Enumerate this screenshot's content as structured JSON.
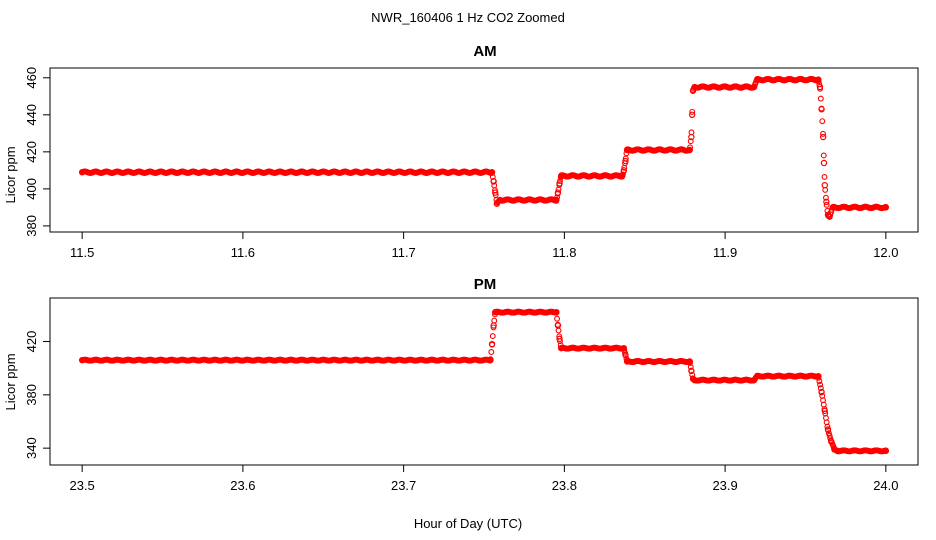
{
  "figure": {
    "title": "NWR_160406  1 Hz CO2 Zoomed",
    "xlabel": "Hour of Day (UTC)"
  },
  "chart_data": [
    {
      "type": "scatter",
      "title": "AM",
      "ylabel": "Licor ppm",
      "xlim": [
        11.5,
        12.0
      ],
      "ylim": [
        380,
        462
      ],
      "xticks": [
        "11.5",
        "11.6",
        "11.7",
        "11.8",
        "11.9",
        "12.0"
      ],
      "yticks": [
        "380",
        "400",
        "420",
        "440",
        "460"
      ],
      "grid": false,
      "marker_color": "#ff0000",
      "series": [
        {
          "x": [
            11.5,
            11.755,
            11.756,
            11.757,
            11.758,
            11.76,
            11.795,
            11.796,
            11.797,
            11.798,
            11.836,
            11.837,
            11.838,
            11.839,
            11.878,
            11.879,
            11.8795,
            11.88,
            11.881,
            11.918,
            11.92,
            11.958,
            11.959,
            11.96,
            11.961,
            11.9615,
            11.962,
            11.963,
            11.964,
            11.965,
            11.967,
            12.0
          ],
          "y": [
            409,
            409,
            404,
            398,
            392,
            394,
            394,
            398,
            403,
            407,
            407,
            410,
            415,
            421,
            421,
            428,
            440,
            453,
            455,
            455,
            459,
            459,
            455,
            443,
            428,
            414,
            402,
            393,
            386,
            385,
            390,
            390
          ]
        }
      ]
    },
    {
      "type": "scatter",
      "title": "PM",
      "ylabel": "Licor ppm",
      "xlim": [
        23.5,
        24.0
      ],
      "ylim": [
        332,
        448
      ],
      "xticks": [
        "23.5",
        "23.6",
        "23.7",
        "23.8",
        "23.9",
        "24.0"
      ],
      "yticks": [
        "340",
        "380",
        "420"
      ],
      "grid": false,
      "marker_color": "#ff0000",
      "series": [
        {
          "x": [
            23.5,
            23.754,
            23.755,
            23.756,
            23.757,
            23.795,
            23.796,
            23.797,
            23.798,
            23.837,
            23.838,
            23.839,
            23.878,
            23.879,
            23.88,
            23.881,
            23.918,
            23.92,
            23.958,
            23.96,
            23.962,
            23.964,
            23.966,
            23.968,
            23.97,
            24.0
          ],
          "y": [
            406,
            406,
            418,
            432,
            442,
            442,
            432,
            422,
            415,
            415,
            410,
            405,
            405,
            398,
            392,
            391,
            391,
            394,
            394,
            382,
            368,
            354,
            345,
            339,
            338,
            338
          ]
        }
      ]
    }
  ]
}
